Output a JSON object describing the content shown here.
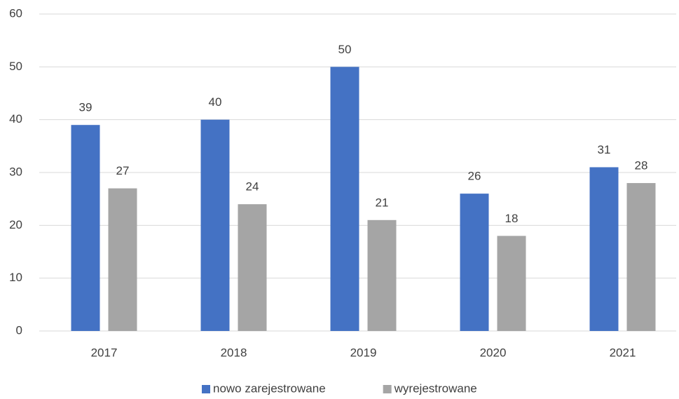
{
  "chart_data": {
    "type": "bar",
    "categories": [
      "2017",
      "2018",
      "2019",
      "2020",
      "2021"
    ],
    "series": [
      {
        "name": "nowo zarejestrowane",
        "color": "#4472c4",
        "values": [
          39,
          40,
          50,
          26,
          31
        ]
      },
      {
        "name": "wyrejestrowane",
        "color": "#a5a5a5",
        "values": [
          27,
          24,
          21,
          18,
          28
        ]
      }
    ],
    "ylim": [
      0,
      60
    ],
    "yticks": [
      0,
      10,
      20,
      30,
      40,
      50,
      60
    ],
    "grid": true,
    "legend": "bottom"
  }
}
